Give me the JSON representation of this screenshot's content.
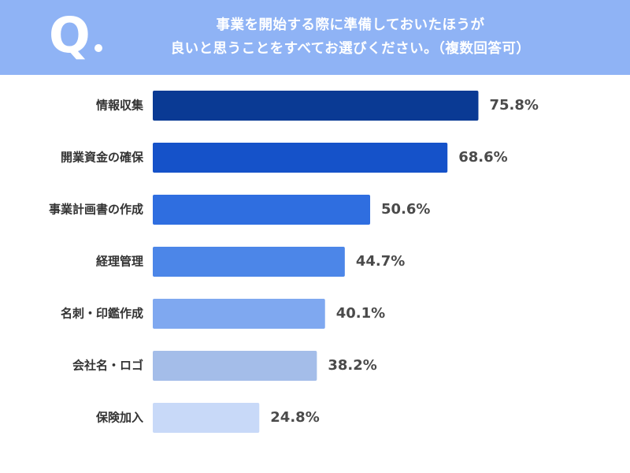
{
  "question": {
    "mark": "Q",
    "line1": "事業を開始する際に準備しておいたほうが",
    "line2": "良いと思うことをすべてお選びください。（複数回答可）"
  },
  "chart_data": {
    "type": "bar",
    "orientation": "horizontal",
    "categories": [
      "情報収集",
      "開業資金の確保",
      "事業計画書の作成",
      "経理管理",
      "名刺・印鑑作成",
      "会社名・ロゴ",
      "保険加入"
    ],
    "values": [
      75.8,
      68.6,
      50.6,
      44.7,
      40.1,
      38.2,
      24.8
    ],
    "value_labels": [
      "75.8%",
      "68.6%",
      "50.6%",
      "44.7%",
      "40.1%",
      "38.2%",
      "24.8%"
    ],
    "unit": "%",
    "colors": [
      "#0a3a94",
      "#1552c9",
      "#2f6ee0",
      "#4c86e8",
      "#7fa8f0",
      "#a4bde9",
      "#c8d9f8"
    ],
    "xlim": [
      0,
      100
    ],
    "grid": false
  }
}
